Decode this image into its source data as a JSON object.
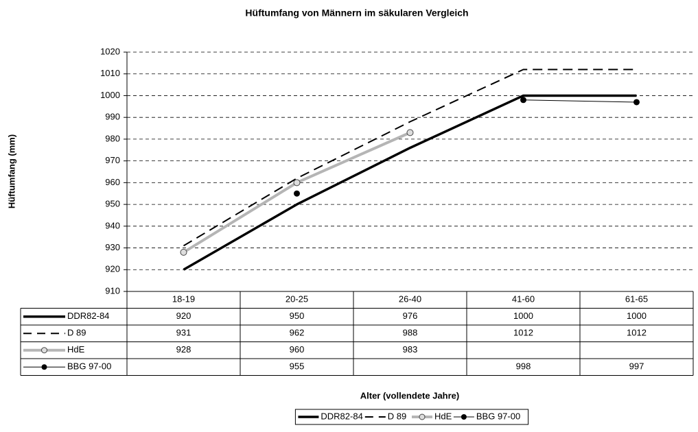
{
  "chart_data": {
    "type": "line",
    "title": "Hüftumfang von Männern im säkularen Vergleich",
    "x_label": "Alter (vollendete Jahre)",
    "y_label": "Hüftumfang (mm)",
    "categories": [
      "18-19",
      "20-25",
      "26-40",
      "41-60",
      "61-65"
    ],
    "series": [
      {
        "name": "DDR82-84",
        "color": "#000000",
        "line_width": 3.5,
        "dashed": false,
        "marker": "none",
        "values": [
          920,
          950,
          976,
          1000,
          1000
        ]
      },
      {
        "name": "D 89",
        "color": "#000000",
        "line_width": 2,
        "dashed": true,
        "marker": "none",
        "values": [
          931,
          962,
          988,
          1012,
          1012
        ]
      },
      {
        "name": "HdE",
        "color": "#b5b5b5",
        "line_width": 4,
        "dashed": false,
        "marker": "open-circle",
        "values": [
          928,
          960,
          983,
          null,
          null
        ]
      },
      {
        "name": "BBG 97-00",
        "color": "#000000",
        "line_width": 1,
        "dashed": false,
        "marker": "dot",
        "values": [
          null,
          955,
          null,
          998,
          997
        ]
      }
    ],
    "ylim": [
      910,
      1020
    ],
    "yticks": [
      910,
      920,
      930,
      940,
      950,
      960,
      970,
      980,
      990,
      1000,
      1010,
      1020
    ],
    "grid": true,
    "data_table": true,
    "legend": "bottom"
  }
}
